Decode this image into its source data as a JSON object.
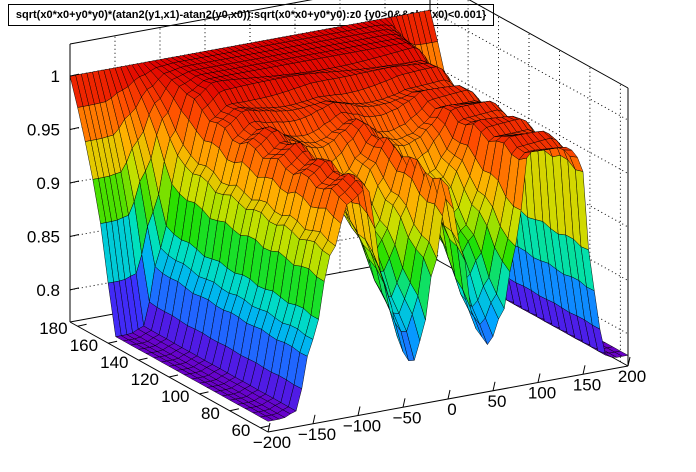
{
  "chart_data": {
    "type": "surface",
    "title": "sqrt(x0*x0+y0*y0)*(atan2(y1,x1)-atan2(y0,x0)):sqrt(x0*x0+y0*y0):z0 {y0>0&&abs(x0)<0.001}",
    "xlabel": "",
    "ylabel": "",
    "zlabel": "",
    "x_axis": {
      "range": [
        -200,
        200
      ],
      "ticks": [
        -200,
        -150,
        -100,
        -50,
        0,
        50,
        100,
        150,
        200
      ],
      "tick_labels": [
        "−200",
        "−150",
        "−100",
        "−50",
        "0",
        "50",
        "100",
        "150",
        "200"
      ]
    },
    "y_axis": {
      "range": [
        55,
        185
      ],
      "ticks": [
        60,
        80,
        100,
        120,
        140,
        160,
        180
      ],
      "tick_labels": [
        "60",
        "80",
        "100",
        "120",
        "140",
        "160",
        "180"
      ]
    },
    "z_axis": {
      "range": [
        0.77,
        1.03
      ],
      "ticks": [
        0.8,
        0.85,
        0.9,
        0.95,
        1
      ],
      "tick_labels": [
        "0.8",
        "0.85",
        "0.9",
        "0.95",
        "1"
      ]
    },
    "colormap": [
      "#6a00c8",
      "#3a32ff",
      "#00a8ff",
      "#00e0c0",
      "#20e000",
      "#c8e000",
      "#ffb000",
      "#ff5000",
      "#e00000"
    ],
    "grid": true,
    "x_knots": [
      -200,
      -185,
      -170,
      -150,
      -130,
      -110,
      -90,
      -70,
      -50,
      -40,
      -30,
      -15,
      0,
      15,
      30,
      45,
      60,
      75,
      90,
      110,
      120,
      130,
      140,
      150,
      160,
      175,
      185,
      200
    ],
    "edge_profile": [
      0.0,
      0.0,
      0.02,
      0.34,
      0.72,
      0.95,
      1.0,
      1.0,
      1.0,
      1.0,
      1.0,
      1.0,
      1.0,
      1.0,
      1.0,
      1.0,
      1.0,
      1.0,
      1.0,
      1.0,
      1.0,
      1.0,
      0.98,
      0.88,
      0.35,
      0.02,
      0.0,
      0.0
    ],
    "front_dips": [
      0.0,
      0.0,
      0.0,
      0.0,
      0.0,
      0.0,
      0.0,
      0.55,
      0.92,
      1.0,
      0.88,
      0.5,
      0.1,
      0.45,
      0.9,
      1.0,
      0.85,
      0.5,
      0.0,
      0.0,
      0.0,
      0.0,
      0.0,
      0.0,
      0.0,
      0.0,
      0.0,
      0.0
    ],
    "z_mid": 0.985,
    "z_ridge": 1.0,
    "z_floor": 0.78,
    "z_front_min": 0.81,
    "z_back_edge": 1.0
  }
}
